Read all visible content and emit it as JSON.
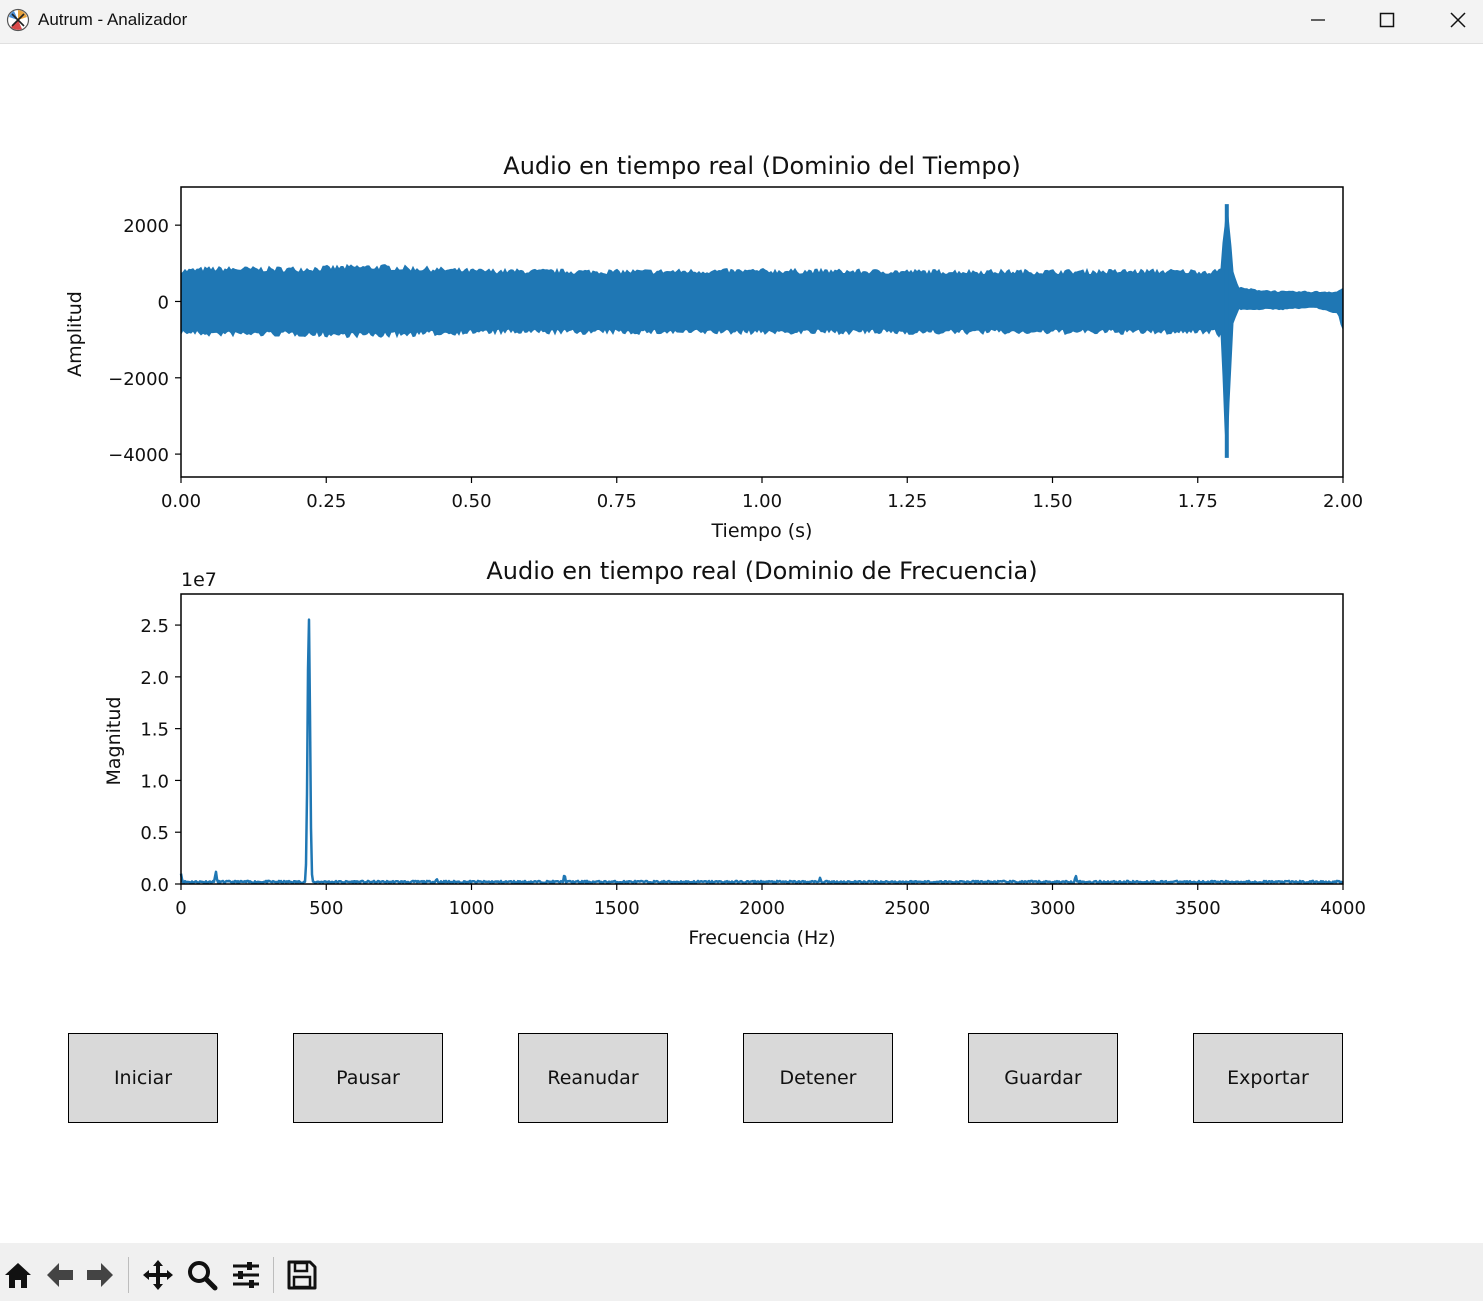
{
  "window": {
    "title": "Autrum - Analizador",
    "controls": [
      "minimize",
      "maximize",
      "close"
    ]
  },
  "colors": {
    "series": "#1f77b4",
    "button_bg": "#d9d9d9",
    "toolbar_bg": "#f0f0f0"
  },
  "chart_data": [
    {
      "type": "line",
      "title": "Audio en tiempo real (Dominio del Tiempo)",
      "xlabel": "Tiempo (s)",
      "ylabel": "Amplitud",
      "xlim": [
        0,
        2
      ],
      "ylim": [
        -4600,
        3000
      ],
      "xticks": [
        "0.00",
        "0.25",
        "0.50",
        "0.75",
        "1.00",
        "1.25",
        "1.50",
        "1.75",
        "2.00"
      ],
      "yticks": [
        "2000",
        "0",
        "−2000",
        "−4000"
      ],
      "envelope": {
        "t": [
          0.0,
          0.05,
          0.2,
          0.3,
          0.35,
          0.5,
          0.75,
          1.0,
          1.25,
          1.5,
          1.7,
          1.78,
          1.79,
          1.8,
          1.81,
          1.82,
          1.85,
          1.9,
          1.95,
          1.99,
          2.0
        ],
        "upper": [
          800,
          850,
          850,
          900,
          900,
          800,
          780,
          800,
          780,
          780,
          790,
          780,
          900,
          2550,
          900,
          350,
          300,
          250,
          250,
          250,
          350
        ],
        "lower": [
          -800,
          -850,
          -850,
          -880,
          -880,
          -800,
          -800,
          -800,
          -800,
          -800,
          -800,
          -780,
          -900,
          -4100,
          -600,
          -200,
          -200,
          -200,
          -150,
          -300,
          -700
        ]
      },
      "grid": false,
      "legend": "none"
    },
    {
      "type": "line",
      "title": "Audio en tiempo real (Dominio de Frecuencia)",
      "xlabel": "Frecuencia (Hz)",
      "ylabel": "Magnitud",
      "offset_text": "1e7",
      "xlim": [
        0,
        4000
      ],
      "ylim": [
        0,
        2.8
      ],
      "xticks": [
        "0",
        "500",
        "1000",
        "1500",
        "2000",
        "2500",
        "3000",
        "3500",
        "4000"
      ],
      "yticks": [
        "0.0",
        "0.5",
        "1.0",
        "1.5",
        "2.0",
        "2.5"
      ],
      "peaks": [
        {
          "f": 0,
          "mag": 0.1
        },
        {
          "f": 120,
          "mag": 0.12
        },
        {
          "f": 440,
          "mag": 2.58
        },
        {
          "f": 880,
          "mag": 0.05
        },
        {
          "f": 1320,
          "mag": 0.09
        },
        {
          "f": 2200,
          "mag": 0.06
        },
        {
          "f": 3080,
          "mag": 0.08
        }
      ],
      "baseline": 0.02,
      "grid": false,
      "legend": "none"
    }
  ],
  "buttons": [
    {
      "id": "iniciar",
      "label": "Iniciar"
    },
    {
      "id": "pausar",
      "label": "Pausar"
    },
    {
      "id": "reanudar",
      "label": "Reanudar"
    },
    {
      "id": "detener",
      "label": "Detener"
    },
    {
      "id": "guardar",
      "label": "Guardar"
    },
    {
      "id": "exportar",
      "label": "Exportar"
    }
  ],
  "toolbar": {
    "tools": [
      "home-icon",
      "back-icon",
      "forward-icon",
      "pan-icon",
      "zoom-icon",
      "configure-subplots-icon",
      "save-icon"
    ]
  }
}
